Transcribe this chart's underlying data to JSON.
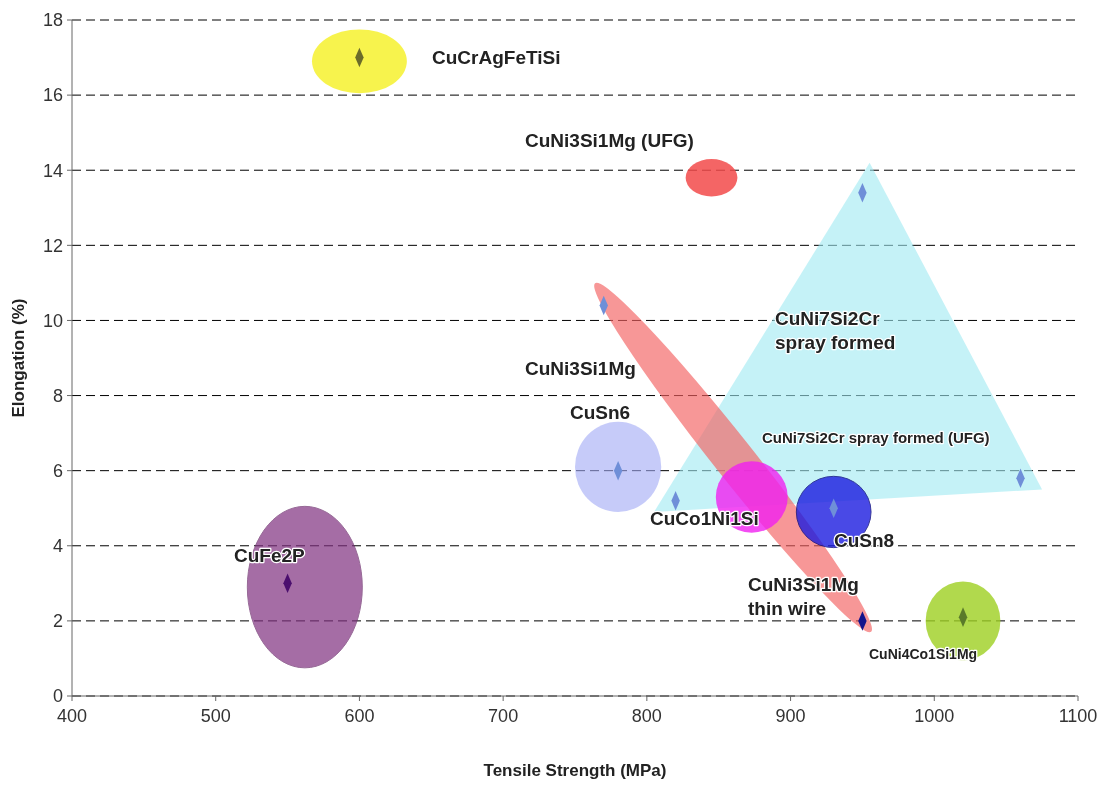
{
  "chart_data": {
    "type": "scatter",
    "xlabel": "Tensile Strength (MPa)",
    "ylabel": "Elongation (%)",
    "x": [
      600,
      950,
      770,
      780,
      820,
      930,
      1060,
      950,
      550,
      1020
    ],
    "values": [
      17,
      13.4,
      10.4,
      6,
      5.2,
      5.0,
      5.8,
      2.0,
      3.0,
      2.1
    ],
    "colors": [
      "#6b6b2a",
      "#6f8fd8",
      "#6f8fd8",
      "#6f8fd8",
      "#6f8fd8",
      "#6f8fd8",
      "#6f8fd8",
      "#14148c",
      "#4b0f6e",
      "#5a7a2a"
    ],
    "marker": "diamond",
    "xlim": [
      400,
      1100
    ],
    "xticks": [
      400,
      500,
      600,
      700,
      800,
      900,
      1000,
      1100
    ],
    "ylim": [
      0,
      18
    ],
    "yticks": [
      0,
      2,
      4,
      6,
      8,
      10,
      12,
      14,
      16,
      18
    ],
    "grid": "y",
    "annotations": [
      "CuCrAgFeTiSi",
      "CuNi3Si1Mg (UFG)",
      "CuNi7Si2Cr\nspray formed",
      "CuNi3Si1Mg",
      "CuSn6",
      "CuNi7Si2Cr spray formed (UFG)",
      "CuCo1Ni1Si",
      "CuSn8",
      "CuFe2P",
      "CuNi3Si1Mg\nthin wire",
      "CuNi4Co1Si1Mg"
    ]
  }
}
